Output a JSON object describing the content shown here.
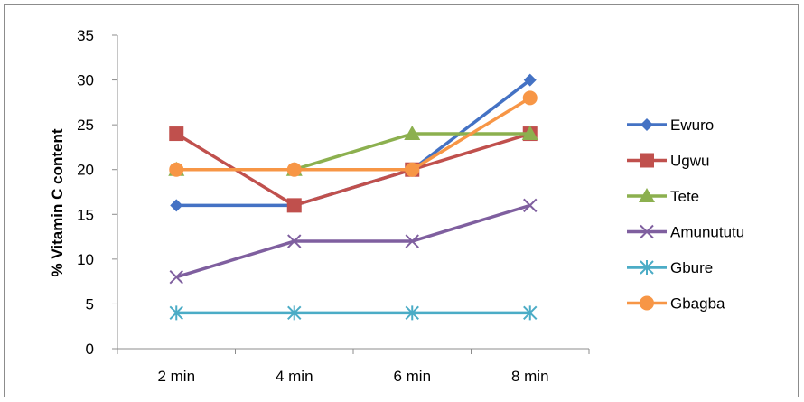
{
  "chart_data": {
    "type": "line",
    "categories": [
      "2 min",
      "4 min",
      "6 min",
      "8 min"
    ],
    "xlabel": "",
    "ylabel": "% Vitamin C content",
    "ylim": [
      0,
      35
    ],
    "yticks": [
      0,
      5,
      10,
      15,
      20,
      25,
      30,
      35
    ],
    "grid": false,
    "legend_position": "right",
    "series": [
      {
        "name": "Ewuro",
        "values": [
          16,
          16,
          20,
          30
        ],
        "color": "#4472C4",
        "marker": "diamond"
      },
      {
        "name": "Ugwu",
        "values": [
          24,
          16,
          20,
          24
        ],
        "color": "#C0504D",
        "marker": "square"
      },
      {
        "name": "Tete",
        "values": [
          20,
          20,
          24,
          24
        ],
        "color": "#8CB04F",
        "marker": "triangle"
      },
      {
        "name": "Amunututu",
        "values": [
          8,
          12,
          12,
          16
        ],
        "color": "#7F5F9F",
        "marker": "x"
      },
      {
        "name": "Gbure",
        "values": [
          4,
          4,
          4,
          4
        ],
        "color": "#4BACC6",
        "marker": "star"
      },
      {
        "name": "Gbagba",
        "values": [
          20,
          20,
          20,
          28
        ],
        "color": "#F79646",
        "marker": "circle"
      }
    ]
  }
}
